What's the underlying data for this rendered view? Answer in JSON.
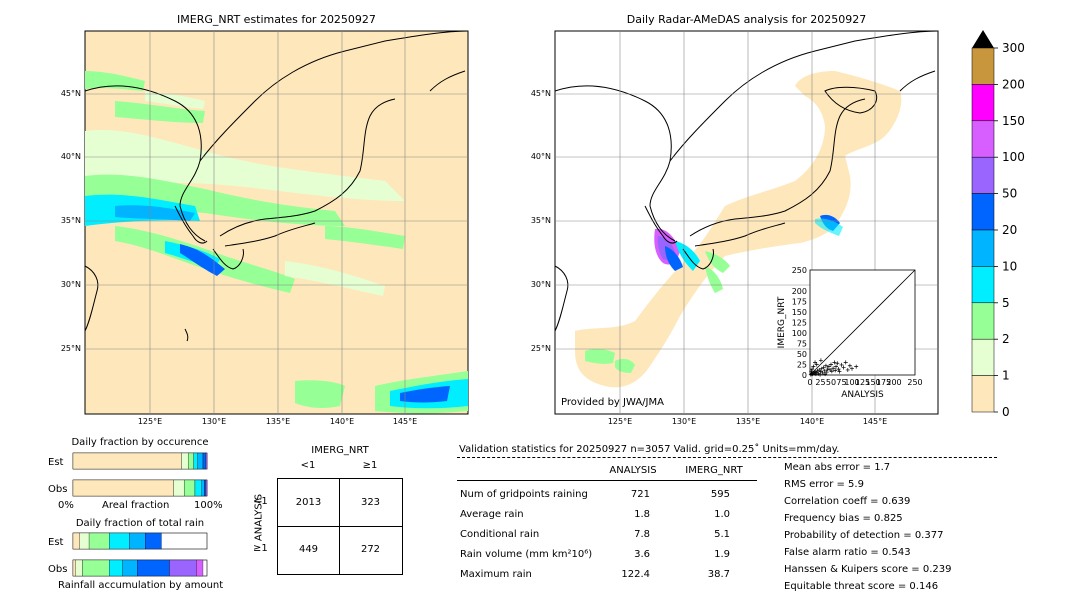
{
  "left_map": {
    "title": "IMERG_NRT estimates for 20250927",
    "lat_labels": [
      "45°N",
      "40°N",
      "35°N",
      "30°N",
      "25°N"
    ],
    "lon_labels": [
      "125°E",
      "130°E",
      "135°E",
      "140°E",
      "145°E"
    ]
  },
  "right_map": {
    "title": "Daily Radar-AMeDAS analysis for 20250927",
    "lat_labels": [
      "45°N",
      "40°N",
      "35°N",
      "30°N",
      "25°N"
    ],
    "lon_labels": [
      "125°E",
      "130°E",
      "135°E",
      "140°E",
      "145°E"
    ],
    "credit": "Provided by JWA/JMA"
  },
  "colorbar": {
    "ticks": [
      "300",
      "200",
      "150",
      "100",
      "50",
      "20",
      "10",
      "5",
      "2",
      "1",
      "0"
    ],
    "colors": [
      "#c8963c",
      "#ff00ff",
      "#d75eff",
      "#9a64ff",
      "#0064ff",
      "#00b4ff",
      "#00eeff",
      "#96ff96",
      "#e6ffd2",
      "#fee8bb"
    ]
  },
  "fraction_occurrence": {
    "title": "Daily fraction by occurence",
    "rows": [
      "Est",
      "Obs"
    ],
    "xlabel_left": "0%",
    "xlabel_mid": "Areal fraction",
    "xlabel_right": "100%",
    "est_segments": [
      0.81,
      0.05,
      0.04,
      0.03,
      0.04,
      0.02,
      0.01
    ],
    "obs_segments": [
      0.75,
      0.08,
      0.08,
      0.05,
      0.02,
      0.01,
      0.01
    ]
  },
  "fraction_total": {
    "title": "Daily fraction of total rain",
    "rows": [
      "Est",
      "Obs"
    ],
    "xlabel": "Rainfall accumulation by amount",
    "est_segments": [
      0.05,
      0.07,
      0.15,
      0.15,
      0.12,
      0.12,
      0.0,
      0.0
    ],
    "obs_segments": [
      0.02,
      0.05,
      0.2,
      0.1,
      0.11,
      0.24,
      0.2,
      0.05
    ]
  },
  "contingency": {
    "col_title": "IMERG_NRT",
    "col_labels": [
      "<1",
      "≥1"
    ],
    "row_title": "ANALYSIS",
    "row_labels": [
      "<1",
      "≥1"
    ],
    "cells": [
      [
        "2013",
        "323"
      ],
      [
        "449",
        "272"
      ]
    ]
  },
  "validation": {
    "header": "Validation statistics for 20250927  n=3057 Valid. grid=0.25˚ Units=mm/day.",
    "col_analysis": "ANALYSIS",
    "col_imerg": "IMERG_NRT",
    "rows": [
      {
        "label": "Num of gridpoints raining",
        "analysis": "721",
        "imerg": "595"
      },
      {
        "label": "Average rain",
        "analysis": "1.8",
        "imerg": "1.0"
      },
      {
        "label": "Conditional rain",
        "analysis": "7.8",
        "imerg": "5.1"
      },
      {
        "label": "Rain volume (mm km²10⁶)",
        "analysis": "3.6",
        "imerg": "1.9"
      },
      {
        "label": "Maximum rain",
        "analysis": "122.4",
        "imerg": "38.7"
      }
    ],
    "scores": [
      "Mean abs error =    1.7",
      "RMS error =    5.9",
      "Correlation coeff =  0.639",
      "Frequency bias =  0.825",
      "Probability of detection =  0.377",
      "False alarm ratio =  0.543",
      "Hanssen & Kuipers score =  0.239",
      "Equitable threat score =  0.146"
    ]
  },
  "chart_data": {
    "type": "scatter",
    "title": "",
    "xlabel": "ANALYSIS",
    "ylabel": "IMERG_NRT",
    "xlim": [
      0,
      250
    ],
    "ylim": [
      0,
      250
    ],
    "xticks": [
      "0",
      "25",
      "50",
      "75",
      "100",
      "125",
      "150",
      "175",
      "200",
      "250"
    ],
    "yticks": [
      "0",
      "25",
      "50",
      "75",
      "100",
      "125",
      "150",
      "175",
      "200",
      "250"
    ],
    "points": [
      [
        2,
        1
      ],
      [
        4,
        3
      ],
      [
        6,
        2
      ],
      [
        8,
        5
      ],
      [
        10,
        4
      ],
      [
        12,
        8
      ],
      [
        15,
        6
      ],
      [
        18,
        10
      ],
      [
        20,
        3
      ],
      [
        22,
        12
      ],
      [
        25,
        8
      ],
      [
        28,
        15
      ],
      [
        30,
        5
      ],
      [
        32,
        18
      ],
      [
        35,
        10
      ],
      [
        38,
        22
      ],
      [
        40,
        7
      ],
      [
        42,
        14
      ],
      [
        45,
        20
      ],
      [
        48,
        12
      ],
      [
        50,
        25
      ],
      [
        52,
        9
      ],
      [
        55,
        16
      ],
      [
        58,
        30
      ],
      [
        60,
        11
      ],
      [
        62,
        20
      ],
      [
        65,
        28
      ],
      [
        68,
        14
      ],
      [
        70,
        8
      ],
      [
        75,
        24
      ],
      [
        80,
        18
      ],
      [
        85,
        30
      ],
      [
        90,
        12
      ],
      [
        95,
        22
      ],
      [
        100,
        15
      ],
      [
        110,
        20
      ],
      [
        5,
        14
      ],
      [
        8,
        20
      ],
      [
        3,
        9
      ],
      [
        14,
        2
      ],
      [
        24,
        1
      ],
      [
        36,
        2
      ],
      [
        16,
        25
      ],
      [
        26,
        35
      ],
      [
        12,
        30
      ]
    ]
  }
}
